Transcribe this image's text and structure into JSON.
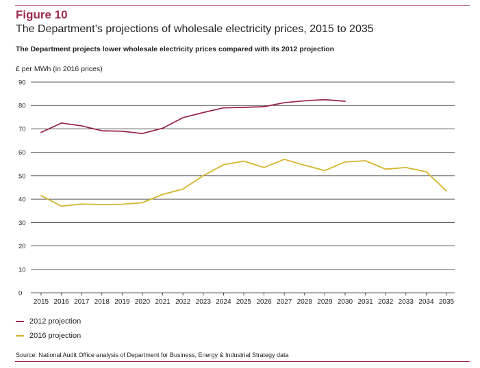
{
  "figure": {
    "label": "Figure 10",
    "title": "The Department’s projections of wholesale electricity prices, 2015 to 2035",
    "subtitle": "The Department projects lower wholesale electricity prices compared with its 2012 projection",
    "source": "Source: National Audit Office analysis of Department for Business, Energy & Industrial Strategy data"
  },
  "colors": {
    "accent": "#9b2a4e",
    "series_2012": "#9b2a4e",
    "series_2016": "#d4b42a",
    "grid": "#222222"
  },
  "chart_data": {
    "type": "line",
    "ylabel": "£ per MWh (in 2016 prices)",
    "xlabel": "",
    "ylim": [
      0,
      90
    ],
    "yticks": [
      0,
      10,
      20,
      30,
      40,
      50,
      60,
      70,
      80,
      90
    ],
    "grid": true,
    "legend_position": "bottom-left",
    "x": [
      "2015",
      "2016",
      "2017",
      "2018",
      "2019",
      "2020",
      "2021",
      "2022",
      "2023",
      "2024",
      "2025",
      "2026",
      "2027",
      "2028",
      "2029",
      "2030",
      "2031",
      "2032",
      "2033",
      "2034",
      "2035"
    ],
    "series": [
      {
        "name": "2012 projection",
        "color": "#9b2a4e",
        "values": [
          68.5,
          72.5,
          71.3,
          69.2,
          69.0,
          68.0,
          70.3,
          74.8,
          77.0,
          79.0,
          79.2,
          79.5,
          81.2,
          82.0,
          82.5,
          81.8,
          null,
          null,
          null,
          null,
          null
        ]
      },
      {
        "name": "2016 projection",
        "color": "#d4b42a",
        "values": [
          41.5,
          37.0,
          37.9,
          37.7,
          37.8,
          38.5,
          42.0,
          44.3,
          50.0,
          54.7,
          56.2,
          53.5,
          57.0,
          54.5,
          52.2,
          55.9,
          56.4,
          52.8,
          53.5,
          51.7,
          43.5
        ]
      }
    ]
  }
}
